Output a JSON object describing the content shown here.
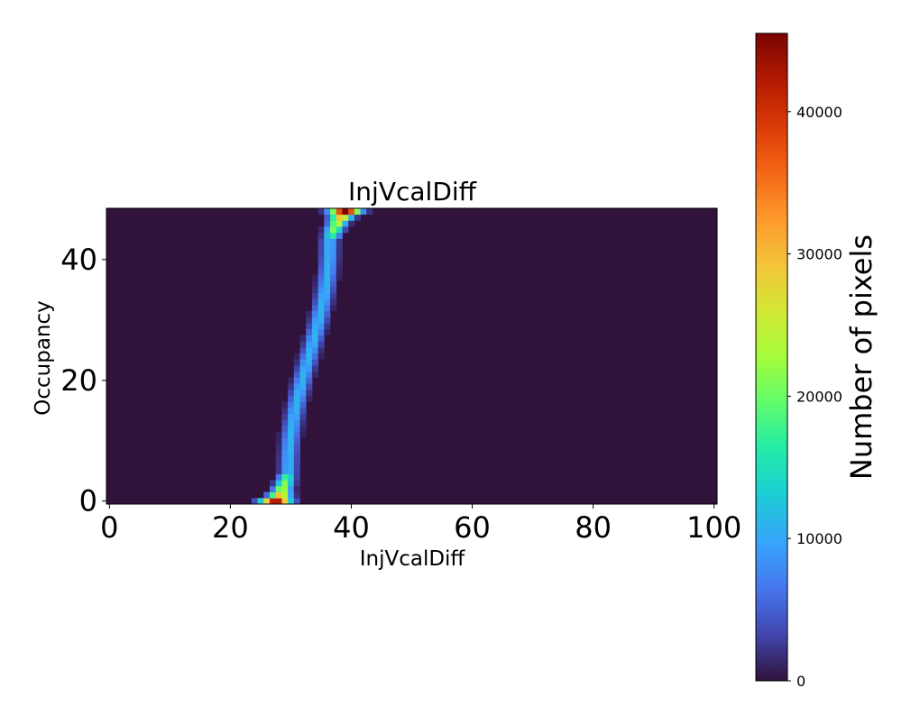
{
  "chart_data": {
    "type": "heatmap",
    "title": "InjVcalDiff",
    "xlabel": "InjVcalDiff",
    "ylabel": "Occupancy",
    "xlim": [
      -0.5,
      100.5
    ],
    "ylim": [
      -0.5,
      48.5
    ],
    "x_ticks": [
      0,
      20,
      40,
      60,
      80,
      100
    ],
    "y_ticks": [
      0,
      20,
      40
    ],
    "colorbar": {
      "label": "Number of pixels",
      "colormap": "turbo",
      "vmin": 0,
      "vmax": 45500,
      "ticks": [
        0,
        10000,
        20000,
        30000,
        40000
      ]
    },
    "grid": false,
    "background_value": 0,
    "ridge": {
      "description": "occupancy bins 0..48, each row peaks at InjVcalDiff center",
      "rows": [
        {
          "occupancy": 0,
          "center": 27.5,
          "peak": 44000,
          "width": 1.6
        },
        {
          "occupancy": 1,
          "center": 28.2,
          "peak": 30000,
          "width": 1.2
        },
        {
          "occupancy": 2,
          "center": 28.6,
          "peak": 24000,
          "width": 1.0
        },
        {
          "occupancy": 3,
          "center": 29.0,
          "peak": 21000,
          "width": 0.95
        },
        {
          "occupancy": 4,
          "center": 29.3,
          "peak": 18000,
          "width": 0.9
        },
        {
          "occupancy": 48,
          "center": 39.0,
          "peak": 45500,
          "width": 1.6
        },
        {
          "occupancy": 47,
          "center": 38.3,
          "peak": 30000,
          "width": 1.2
        },
        {
          "occupancy": 46,
          "center": 37.7,
          "peak": 24000,
          "width": 1.0
        },
        {
          "occupancy": 45,
          "center": 37.2,
          "peak": 21000,
          "width": 0.95
        },
        {
          "occupancy": 44,
          "center": 36.8,
          "peak": 17000,
          "width": 0.9
        }
      ],
      "mid_center_start": 29.6,
      "mid_center_end": 36.4,
      "mid_peak": 11000
    }
  }
}
